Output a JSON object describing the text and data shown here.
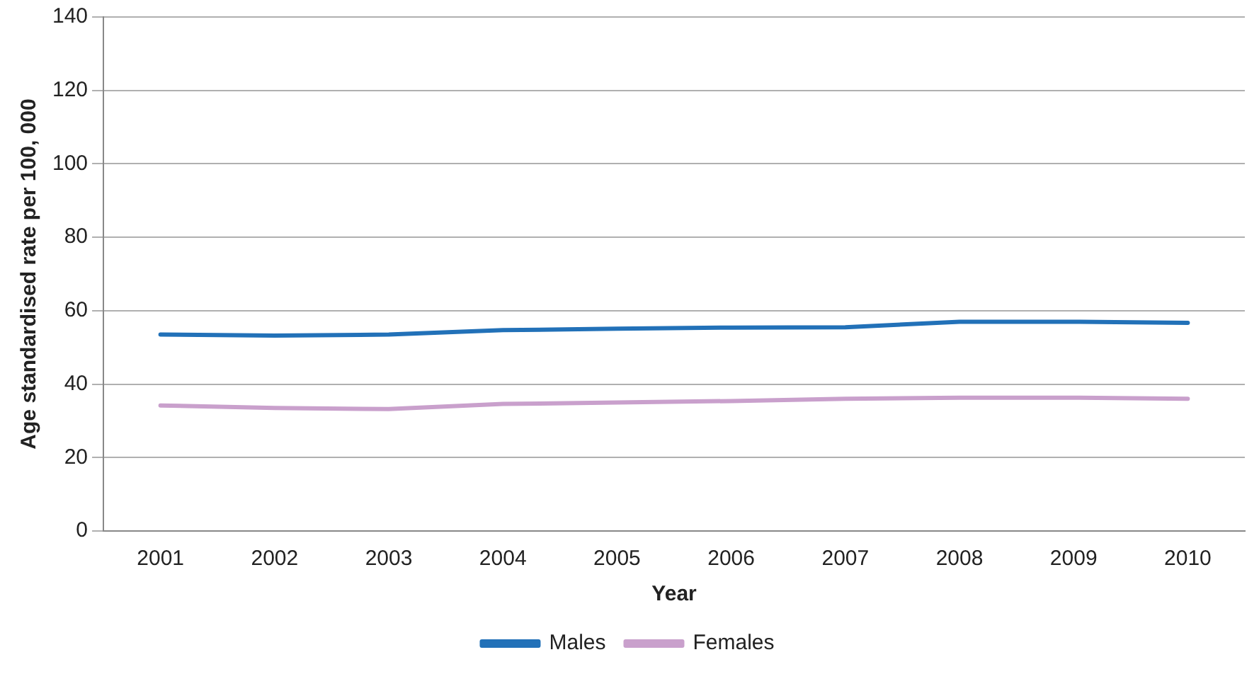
{
  "chart_data": {
    "type": "line",
    "xlabel": "Year",
    "ylabel": "Age standardised rate per 100, 000",
    "categories": [
      "2001",
      "2002",
      "2003",
      "2004",
      "2005",
      "2006",
      "2007",
      "2008",
      "2009",
      "2010"
    ],
    "series": [
      {
        "name": "Males",
        "color": "#2271b8",
        "values": [
          53.5,
          53.2,
          53.5,
          54.7,
          55.1,
          55.4,
          55.5,
          57,
          57,
          56.7
        ]
      },
      {
        "name": "Females",
        "color": "#c9a0cc",
        "values": [
          34.2,
          33.5,
          33.2,
          34.6,
          35,
          35.4,
          36,
          36.3,
          36.3,
          36
        ]
      }
    ],
    "ylim": [
      0,
      140
    ],
    "yticks": [
      0,
      20,
      40,
      60,
      80,
      100,
      120,
      140
    ],
    "grid": "y",
    "legend": "bottom",
    "marker": "none"
  }
}
